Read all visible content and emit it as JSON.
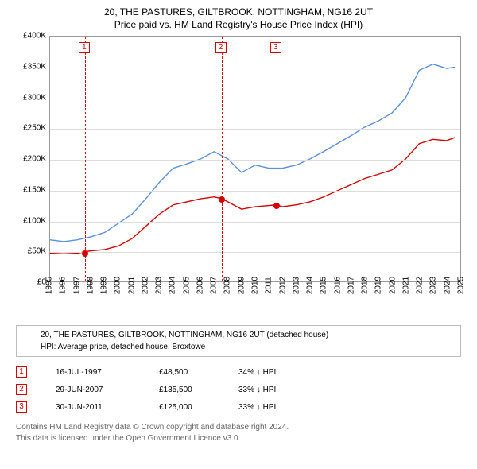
{
  "title_line1": "20, THE PASTURES, GILTBROOK, NOTTINGHAM, NG16 2UT",
  "title_line2": "Price paid vs. HM Land Registry's House Price Index (HPI)",
  "chart": {
    "type": "line",
    "background_color": "#ffffff",
    "grid_color": "#dddddd",
    "axis_color": "#999999",
    "xmin": 1995,
    "xmax": 2025,
    "ymin": 0,
    "ymax": 400000,
    "yticks": [
      0,
      50000,
      100000,
      150000,
      200000,
      250000,
      300000,
      350000,
      400000
    ],
    "ytick_labels": [
      "£0",
      "£50K",
      "£100K",
      "£150K",
      "£200K",
      "£250K",
      "£300K",
      "£350K",
      "£400K"
    ],
    "xticks": [
      1995,
      1996,
      1997,
      1998,
      1999,
      2000,
      2001,
      2002,
      2003,
      2004,
      2005,
      2006,
      2007,
      2008,
      2009,
      2010,
      2011,
      2012,
      2013,
      2014,
      2015,
      2016,
      2017,
      2018,
      2019,
      2020,
      2021,
      2022,
      2023,
      2024,
      2025
    ],
    "label_fontsize": 10,
    "series": [
      {
        "name": "property",
        "color": "#d40000",
        "line_width": 1.4,
        "data": [
          [
            1995,
            46000
          ],
          [
            1996,
            45000
          ],
          [
            1997,
            46000
          ],
          [
            1997.54,
            48500
          ],
          [
            1998,
            50000
          ],
          [
            1999,
            52000
          ],
          [
            2000,
            58000
          ],
          [
            2001,
            70000
          ],
          [
            2002,
            90000
          ],
          [
            2003,
            110000
          ],
          [
            2004,
            125000
          ],
          [
            2005,
            130000
          ],
          [
            2006,
            135000
          ],
          [
            2007,
            138000
          ],
          [
            2007.49,
            135500
          ],
          [
            2008,
            130000
          ],
          [
            2009,
            118000
          ],
          [
            2010,
            122000
          ],
          [
            2011,
            124000
          ],
          [
            2011.49,
            125000
          ],
          [
            2012,
            122000
          ],
          [
            2013,
            125000
          ],
          [
            2014,
            130000
          ],
          [
            2015,
            138000
          ],
          [
            2016,
            148000
          ],
          [
            2017,
            158000
          ],
          [
            2018,
            168000
          ],
          [
            2019,
            175000
          ],
          [
            2020,
            182000
          ],
          [
            2021,
            200000
          ],
          [
            2022,
            225000
          ],
          [
            2023,
            232000
          ],
          [
            2024,
            230000
          ],
          [
            2024.6,
            235000
          ]
        ]
      },
      {
        "name": "hpi",
        "color": "#5b8fd6",
        "line_width": 1.4,
        "data": [
          [
            1995,
            68000
          ],
          [
            1996,
            65000
          ],
          [
            1997,
            68000
          ],
          [
            1998,
            73000
          ],
          [
            1999,
            80000
          ],
          [
            2000,
            95000
          ],
          [
            2001,
            110000
          ],
          [
            2002,
            135000
          ],
          [
            2003,
            162000
          ],
          [
            2004,
            185000
          ],
          [
            2005,
            192000
          ],
          [
            2006,
            200000
          ],
          [
            2007,
            212000
          ],
          [
            2008,
            200000
          ],
          [
            2009,
            178000
          ],
          [
            2010,
            190000
          ],
          [
            2011,
            185000
          ],
          [
            2012,
            185000
          ],
          [
            2013,
            190000
          ],
          [
            2014,
            200000
          ],
          [
            2015,
            212000
          ],
          [
            2016,
            225000
          ],
          [
            2017,
            238000
          ],
          [
            2018,
            252000
          ],
          [
            2019,
            262000
          ],
          [
            2020,
            275000
          ],
          [
            2021,
            300000
          ],
          [
            2022,
            345000
          ],
          [
            2023,
            355000
          ],
          [
            2024,
            348000
          ],
          [
            2024.6,
            350000
          ]
        ]
      }
    ],
    "sale_markers": [
      {
        "n": "1",
        "x": 1997.54,
        "y": 48500,
        "color": "#d40000"
      },
      {
        "n": "2",
        "x": 2007.49,
        "y": 135500,
        "color": "#d40000"
      },
      {
        "n": "3",
        "x": 2011.49,
        "y": 125000,
        "color": "#d40000"
      }
    ]
  },
  "legend": {
    "items": [
      {
        "color": "#d40000",
        "label": "20, THE PASTURES, GILTBROOK, NOTTINGHAM, NG16 2UT (detached house)"
      },
      {
        "color": "#5b8fd6",
        "label": "HPI: Average price, detached house, Broxtowe"
      }
    ]
  },
  "sales": [
    {
      "n": "1",
      "color": "#d40000",
      "date": "16-JUL-1997",
      "price": "£48,500",
      "diff": "34% ↓ HPI"
    },
    {
      "n": "2",
      "color": "#d40000",
      "date": "29-JUN-2007",
      "price": "£135,500",
      "diff": "33% ↓ HPI"
    },
    {
      "n": "3",
      "color": "#d40000",
      "date": "30-JUN-2011",
      "price": "£125,000",
      "diff": "33% ↓ HPI"
    }
  ],
  "footer_line1": "Contains HM Land Registry data © Crown copyright and database right 2024.",
  "footer_line2": "This data is licensed under the Open Government Licence v3.0."
}
